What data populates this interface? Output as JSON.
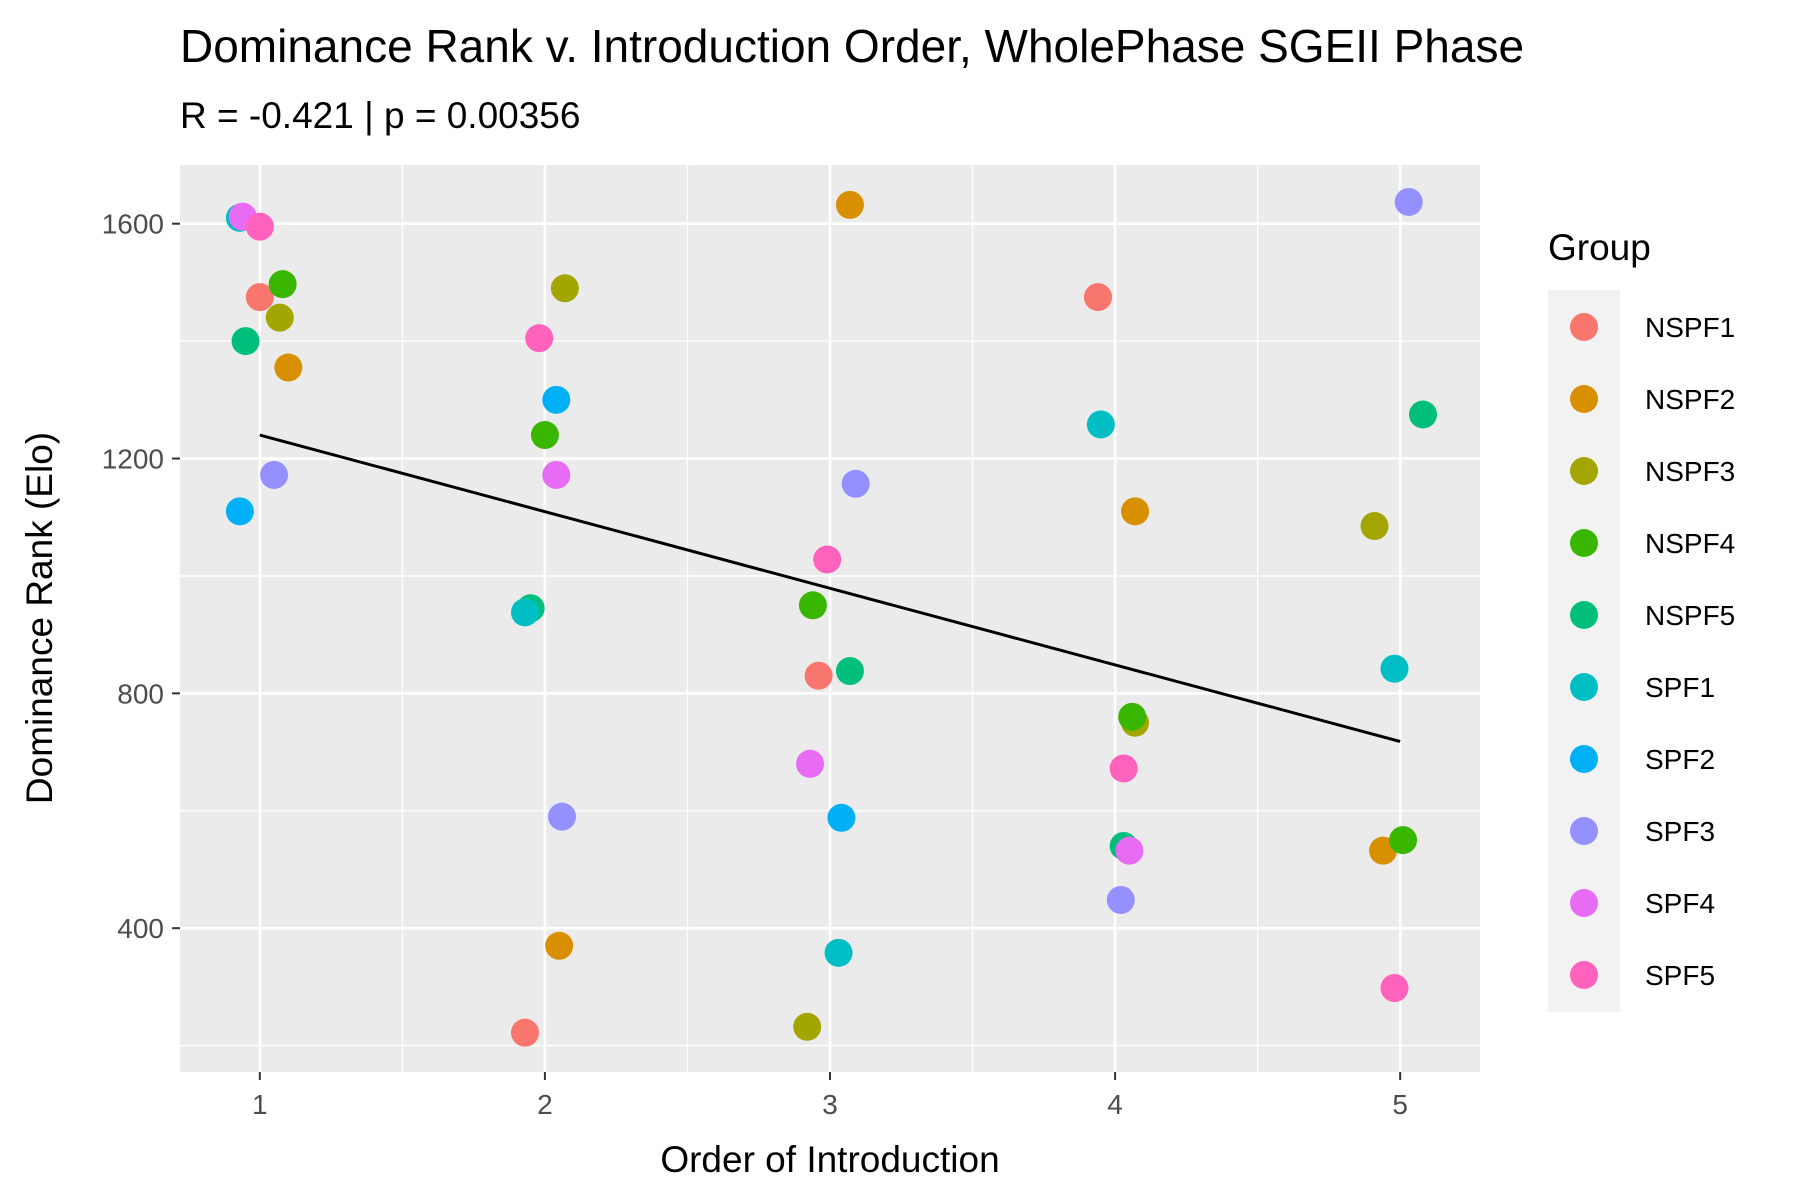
{
  "chart_data": {
    "type": "scatter",
    "title": "Dominance Rank v. Introduction Order, WholePhase SGEII Phase",
    "subtitle": "R = -0.421 | p = 0.00356",
    "xlabel": "Order of Introduction",
    "ylabel": "Dominance Rank (Elo)",
    "xlim": [
      0.72,
      5.28
    ],
    "ylim": [
      155,
      1700
    ],
    "x_ticks": [
      1,
      2,
      3,
      4,
      5
    ],
    "x_tick_labels": [
      "1",
      "2",
      "3",
      "4",
      "5"
    ],
    "y_ticks": [
      400,
      800,
      1200,
      1600
    ],
    "y_tick_labels": [
      "400",
      "800",
      "1200",
      "1600"
    ],
    "grid": true,
    "legend": {
      "title": "Group",
      "position": "right"
    },
    "trend_line": {
      "x": [
        1,
        5
      ],
      "y": [
        1240,
        718
      ],
      "color": "#000000"
    },
    "series": [
      {
        "name": "NSPF1",
        "color": "#F8766D",
        "points": [
          [
            1.0,
            1475
          ],
          [
            1.93,
            222
          ],
          [
            2.96,
            830
          ],
          [
            3.94,
            1475
          ]
        ]
      },
      {
        "name": "NSPF2",
        "color": "#D89000",
        "points": [
          [
            1.1,
            1355
          ],
          [
            2.05,
            370
          ],
          [
            3.07,
            1632
          ],
          [
            4.07,
            1110
          ],
          [
            4.94,
            532
          ]
        ]
      },
      {
        "name": "NSPF3",
        "color": "#A3A500",
        "points": [
          [
            1.07,
            1440
          ],
          [
            2.07,
            1490
          ],
          [
            2.92,
            232
          ],
          [
            4.07,
            750
          ],
          [
            4.91,
            1085
          ]
        ]
      },
      {
        "name": "NSPF4",
        "color": "#39B600",
        "points": [
          [
            1.08,
            1497
          ],
          [
            2.0,
            1240
          ],
          [
            2.94,
            950
          ],
          [
            4.06,
            760
          ],
          [
            5.01,
            550
          ]
        ]
      },
      {
        "name": "NSPF5",
        "color": "#00BF7D",
        "points": [
          [
            0.95,
            1400
          ],
          [
            1.95,
            945
          ],
          [
            3.07,
            838
          ],
          [
            4.03,
            540
          ],
          [
            5.08,
            1275
          ]
        ]
      },
      {
        "name": "SPF1",
        "color": "#00BFC4",
        "points": [
          [
            0.93,
            1610
          ],
          [
            1.93,
            938
          ],
          [
            3.03,
            358
          ],
          [
            3.95,
            1258
          ],
          [
            4.98,
            842
          ]
        ]
      },
      {
        "name": "SPF2",
        "color": "#00B0F6",
        "points": [
          [
            0.93,
            1110
          ],
          [
            2.04,
            1300
          ],
          [
            3.04,
            588
          ]
        ]
      },
      {
        "name": "SPF3",
        "color": "#9590FF",
        "points": [
          [
            1.05,
            1172
          ],
          [
            2.06,
            590
          ],
          [
            3.09,
            1157
          ],
          [
            4.02,
            448
          ],
          [
            5.03,
            1637
          ]
        ]
      },
      {
        "name": "SPF4",
        "color": "#E76BF3",
        "points": [
          [
            0.94,
            1612
          ],
          [
            2.04,
            1172
          ],
          [
            2.93,
            680
          ],
          [
            4.05,
            532
          ]
        ]
      },
      {
        "name": "SPF5",
        "color": "#FF62BC",
        "points": [
          [
            1.0,
            1595
          ],
          [
            1.98,
            1405
          ],
          [
            2.99,
            1028
          ],
          [
            4.03,
            672
          ],
          [
            4.98,
            298
          ]
        ]
      }
    ]
  }
}
